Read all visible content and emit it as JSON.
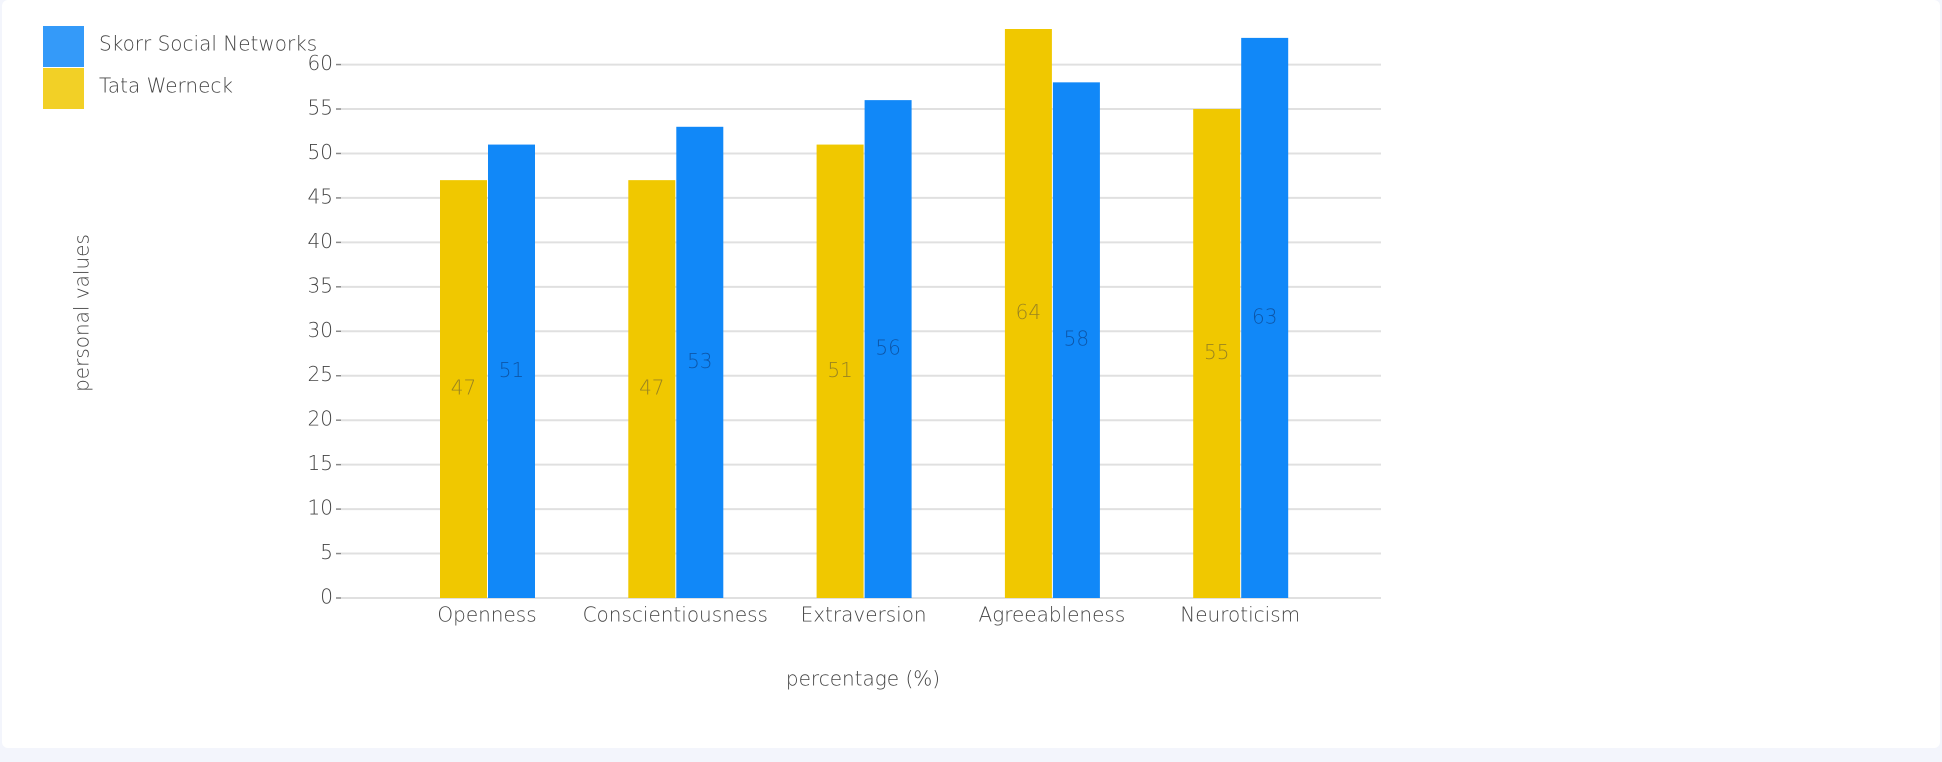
{
  "chart_data": {
    "type": "bar",
    "categories": [
      "Openness",
      "Conscientiousness",
      "Extraversion",
      "Agreeableness",
      "Neuroticism"
    ],
    "series": [
      {
        "name": "Tata Werneck",
        "color": "#f0c800",
        "values": [
          47,
          47,
          51,
          64,
          55
        ]
      },
      {
        "name": "Skorr Social Networks",
        "color": "#1188f8",
        "values": [
          51,
          53,
          56,
          58,
          63
        ]
      }
    ],
    "xlabel": "percentage (%)",
    "ylabel": "personal values",
    "ylim": [
      0,
      64
    ],
    "yticks": [
      0,
      5,
      10,
      15,
      20,
      25,
      30,
      35,
      40,
      45,
      50,
      55,
      60
    ],
    "grid": true,
    "legend": "top-left"
  }
}
